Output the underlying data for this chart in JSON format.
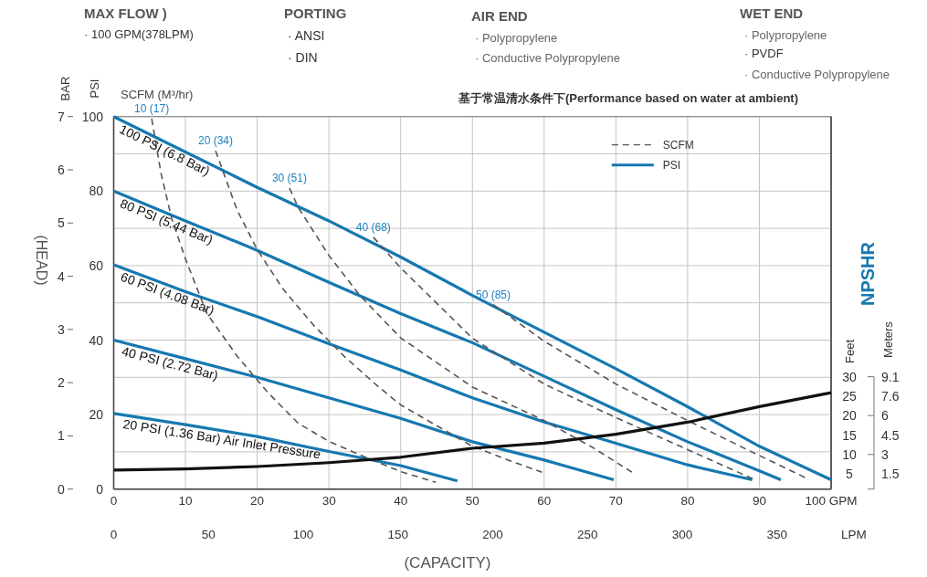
{
  "chart_data": {
    "type": "line",
    "subtitle": "基于常温清水条件下(Performance based on water at ambient)",
    "xlabel": "(CAPACITY)",
    "ylabel": "PSI",
    "y2label": "BAR",
    "x2label": "LPM",
    "y3label": "Feet",
    "xlim": [
      0,
      100
    ],
    "xticks": [
      0,
      10,
      20,
      30,
      40,
      50,
      60,
      70,
      80,
      90,
      {
        "value": 100,
        "label": "100 GPM"
      }
    ],
    "x2lim": [
      0,
      378.5
    ],
    "x2ticks": [
      0,
      50,
      100,
      150,
      200,
      250,
      300,
      350
    ],
    "ylim": [
      0,
      100
    ],
    "yticks": [
      0,
      {
        "value": 10,
        "label": null
      },
      20,
      {
        "value": 30,
        "label": null
      },
      40,
      {
        "value": 50,
        "label": null
      },
      60,
      {
        "value": 70,
        "label": null
      },
      80,
      {
        "value": 90,
        "label": null
      },
      100
    ],
    "y2lim": [
      0,
      7
    ],
    "y2ticks": [
      0,
      1,
      2,
      3,
      4,
      5,
      6,
      7
    ],
    "y3lim": [
      1.1,
      96.9
    ],
    "y3ticks": [
      5,
      10,
      15,
      20,
      25,
      30
    ],
    "grid": true,
    "legend": "top right",
    "series": [
      {
        "name": "PSI",
        "color": "#1678b0",
        "line_style": "solid",
        "x": [
          0,
          10,
          20,
          30,
          40,
          50,
          60,
          70,
          80,
          90,
          100
        ],
        "values": [
          100,
          90.5,
          81,
          72,
          62.3,
          52,
          42.1,
          32.3,
          22.1,
          11.5,
          2.5
        ]
      },
      {
        "color": "#1678b0",
        "line_style": "solid",
        "x": [
          0,
          10,
          20,
          30,
          40,
          50,
          60,
          70,
          80,
          90,
          93
        ],
        "values": [
          80,
          72,
          64.1,
          55.5,
          47.1,
          39.3,
          30.3,
          21.3,
          12.7,
          4.9,
          2.5
        ]
      },
      {
        "color": "#1678b0",
        "line_style": "solid",
        "x": [
          0,
          10,
          20,
          30,
          40,
          50,
          60,
          70,
          80,
          89
        ],
        "values": [
          60.2,
          53,
          46.3,
          39,
          32,
          24.5,
          18,
          12.3,
          6.5,
          2.5
        ]
      },
      {
        "color": "#1678b0",
        "line_style": "solid",
        "x": [
          0,
          10,
          20,
          30,
          40,
          50,
          60,
          69.7
        ],
        "values": [
          40,
          35,
          30,
          24.5,
          19,
          12.7,
          7.8,
          2.5
        ]
      },
      {
        "color": "#1678b0",
        "line_style": "solid",
        "x": [
          0,
          10,
          20,
          30,
          40,
          47.9
        ],
        "values": [
          20.3,
          17.3,
          14.1,
          10.1,
          6.3,
          2.2
        ]
      },
      {
        "name": "SCFM",
        "color": "#555555",
        "line_style": "dashed",
        "x": [
          5.3,
          6.6,
          8.1,
          10,
          13,
          17.2,
          21.5,
          25.7,
          30,
          34.3,
          40,
          44.9
        ],
        "values": [
          99.4,
          84.7,
          72.5,
          61.8,
          47.1,
          35.7,
          25.9,
          17.7,
          12.8,
          9.2,
          4.7,
          1.8
        ]
      },
      {
        "color": "#555555",
        "line_style": "dashed",
        "x": [
          14.2,
          15.5,
          17.2,
          20,
          23.6,
          27.9,
          32.1,
          36.4,
          40,
          50,
          55,
          59.7
        ],
        "values": [
          90.8,
          83.9,
          74.9,
          64.3,
          53.7,
          43.9,
          35.7,
          28.3,
          22.6,
          11.5,
          7.8,
          4.5
        ]
      },
      {
        "color": "#555555",
        "line_style": "dashed",
        "x": [
          24.5,
          25.7,
          30,
          34.3,
          40,
          50,
          60,
          66.9,
          72.6
        ],
        "values": [
          80.8,
          75.7,
          62.7,
          52,
          40.6,
          27.4,
          18.4,
          11,
          4.1
        ]
      },
      {
        "color": "#555555",
        "line_style": "dashed",
        "x": [
          36.2,
          40,
          50,
          60,
          70,
          80,
          89.4
        ],
        "values": [
          67.6,
          59.4,
          40.5,
          28.2,
          19.2,
          10.6,
          2.5
        ]
      },
      {
        "color": "#555555",
        "line_style": "dashed",
        "x": [
          52.9,
          60,
          70,
          80,
          90,
          96.6
        ],
        "values": [
          49.5,
          39.7,
          28.2,
          18.4,
          9,
          2.9
        ]
      },
      {
        "color": "#111111",
        "line_style": "solid",
        "axis": "y3",
        "x": [
          0,
          10,
          20,
          30,
          40,
          50,
          60,
          70,
          80,
          90,
          100
        ],
        "values": [
          6,
          6.3,
          6.9,
          7.9,
          9.3,
          11.6,
          12.9,
          15.2,
          18.3,
          22.3,
          25.9
        ]
      }
    ],
    "annotations": [
      "MAX FLOW )",
      "· 100 GPM(378LPM)",
      "PORTING",
      "· ANSI",
      "· DIN",
      "AIR END",
      "· Polypropylene",
      "· Conductive Polypropylene",
      "WET END",
      "· Polypropylene",
      "· PVDF",
      "· Conductive Polypropylene",
      "SCFM (M³/hr)",
      "(HEAD)",
      "NPSHR",
      "Meters",
      "1.5",
      "3",
      "4.5",
      "6",
      "7.6",
      "9.1",
      {
        "text": "10 (17)",
        "x": 5.3,
        "y": 99.4
      },
      {
        "text": "20 (34)",
        "x": 14.2,
        "y": 90.8
      },
      {
        "text": "30 (51)",
        "x": 24.5,
        "y": 80.8
      },
      {
        "text": "40 (68)",
        "x": 36.2,
        "y": 67.6
      },
      {
        "text": "50 (85)",
        "x": 52.9,
        "y": 49.5
      },
      {
        "text": "100 PSI (6.8 Bar)",
        "x": 1,
        "y": 99.1
      },
      {
        "text": "80 PSI (5.44 Bar)",
        "x": 1,
        "y": 79.2
      },
      {
        "text": "60 PSI (4.08 Bar)",
        "x": 1,
        "y": 59.5
      },
      {
        "text": "40 PSI (2.72 Bar)",
        "x": 1,
        "y": 39.5
      },
      {
        "text": "20 PSI (1.36 Bar) Air Inlet Pressure",
        "x": 1,
        "y": 20
      }
    ]
  }
}
